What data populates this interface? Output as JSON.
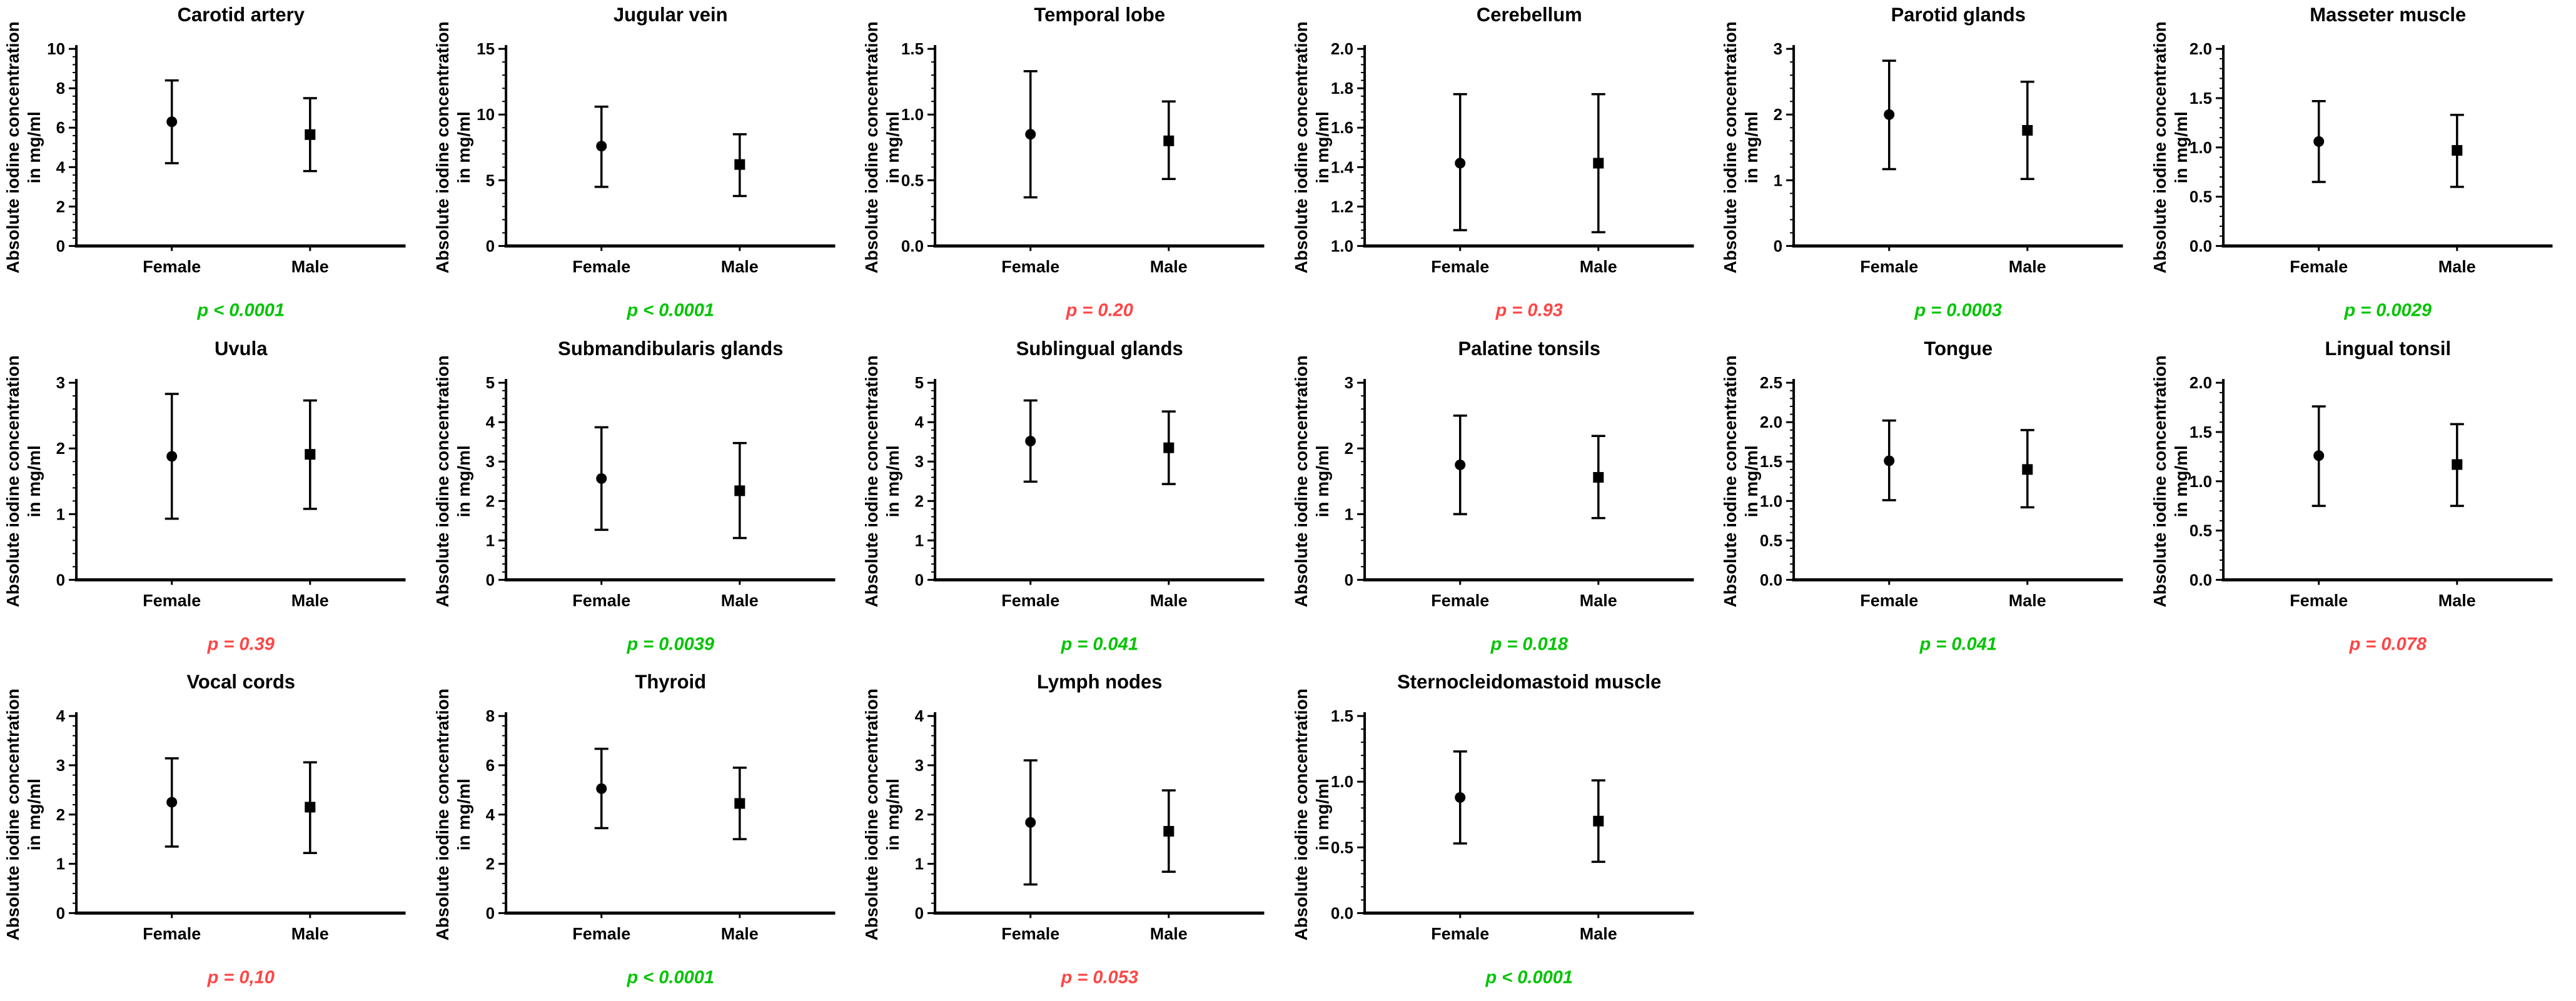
{
  "figure_title": "",
  "shared": {
    "type": "scatter-errorbar",
    "ylabel_line1": "Absolute iodine concentration",
    "ylabel_line2": "in mg/ml",
    "categories": [
      "Female",
      "Male"
    ],
    "female_marker": "circle",
    "male_marker": "square",
    "grid": "off",
    "legend": "none"
  },
  "colors": {
    "axis": "#000000",
    "marker": "#000000",
    "text": "#000000",
    "p_significant_green": "#00c400",
    "p_nonsignificant_red": "#ff4545"
  },
  "chart_data": [
    {
      "type": "scatter-errorbar",
      "title": "Carotid artery",
      "ylim": [
        0,
        10
      ],
      "ytick_values": [
        0,
        2,
        4,
        6,
        8,
        10
      ],
      "ytick_labels": [
        "0",
        "2",
        "4",
        "6",
        "8",
        "10"
      ],
      "series": [
        {
          "name": "Female",
          "marker": "circle",
          "mean": 6.3,
          "lo": 4.2,
          "hi": 8.4
        },
        {
          "name": "Male",
          "marker": "square",
          "mean": 5.65,
          "lo": 3.8,
          "hi": 7.5
        }
      ],
      "p_label": "p < 0.0001",
      "p_significant": true
    },
    {
      "type": "scatter-errorbar",
      "title": "Jugular vein",
      "ylim": [
        0,
        15
      ],
      "ytick_values": [
        0,
        5,
        10,
        15
      ],
      "ytick_labels": [
        "0",
        "5",
        "10",
        "15"
      ],
      "series": [
        {
          "name": "Female",
          "marker": "circle",
          "mean": 7.6,
          "lo": 4.5,
          "hi": 10.6
        },
        {
          "name": "Male",
          "marker": "square",
          "mean": 6.2,
          "lo": 3.8,
          "hi": 8.5
        }
      ],
      "p_label": "p < 0.0001",
      "p_significant": true
    },
    {
      "type": "scatter-errorbar",
      "title": "Temporal lobe",
      "ylim": [
        0,
        1.5
      ],
      "ytick_values": [
        0,
        0.5,
        1.0,
        1.5
      ],
      "ytick_labels": [
        "0.0",
        "0.5",
        "1.0",
        "1.5"
      ],
      "series": [
        {
          "name": "Female",
          "marker": "circle",
          "mean": 0.85,
          "lo": 0.37,
          "hi": 1.33
        },
        {
          "name": "Male",
          "marker": "square",
          "mean": 0.8,
          "lo": 0.51,
          "hi": 1.1
        }
      ],
      "p_label": "p = 0.20",
      "p_significant": false
    },
    {
      "type": "scatter-errorbar",
      "title": "Cerebellum",
      "ylim": [
        1.0,
        2.0
      ],
      "ytick_values": [
        1.0,
        1.2,
        1.4,
        1.6,
        1.8,
        2.0
      ],
      "ytick_labels": [
        "1.0",
        "1.2",
        "1.4",
        "1.6",
        "1.8",
        "2.0"
      ],
      "series": [
        {
          "name": "Female",
          "marker": "circle",
          "mean": 1.42,
          "lo": 1.08,
          "hi": 1.77
        },
        {
          "name": "Male",
          "marker": "square",
          "mean": 1.42,
          "lo": 1.07,
          "hi": 1.77
        }
      ],
      "p_label": "p = 0.93",
      "p_significant": false
    },
    {
      "type": "scatter-errorbar",
      "title": "Parotid glands",
      "ylim": [
        0,
        3
      ],
      "ytick_values": [
        0,
        1,
        2,
        3
      ],
      "ytick_labels": [
        "0",
        "1",
        "2",
        "3"
      ],
      "series": [
        {
          "name": "Female",
          "marker": "circle",
          "mean": 2.0,
          "lo": 1.17,
          "hi": 2.82
        },
        {
          "name": "Male",
          "marker": "square",
          "mean": 1.76,
          "lo": 1.02,
          "hi": 2.5
        }
      ],
      "p_label": "p = 0.0003",
      "p_significant": true
    },
    {
      "type": "scatter-errorbar",
      "title": "Masseter muscle",
      "ylim": [
        0,
        2.0
      ],
      "ytick_values": [
        0,
        0.5,
        1.0,
        1.5,
        2.0
      ],
      "ytick_labels": [
        "0.0",
        "0.5",
        "1.0",
        "1.5",
        "2.0"
      ],
      "series": [
        {
          "name": "Female",
          "marker": "circle",
          "mean": 1.06,
          "lo": 0.65,
          "hi": 1.47
        },
        {
          "name": "Male",
          "marker": "square",
          "mean": 0.97,
          "lo": 0.6,
          "hi": 1.33
        }
      ],
      "p_label": "p = 0.0029",
      "p_significant": true
    },
    {
      "type": "scatter-errorbar",
      "title": "Uvula",
      "ylim": [
        0,
        3
      ],
      "ytick_values": [
        0,
        1,
        2,
        3
      ],
      "ytick_labels": [
        "0",
        "1",
        "2",
        "3"
      ],
      "series": [
        {
          "name": "Female",
          "marker": "circle",
          "mean": 1.88,
          "lo": 0.93,
          "hi": 2.83
        },
        {
          "name": "Male",
          "marker": "square",
          "mean": 1.91,
          "lo": 1.08,
          "hi": 2.73
        }
      ],
      "p_label": "p = 0.39",
      "p_significant": false
    },
    {
      "type": "scatter-errorbar",
      "title": "Submandibularis glands",
      "ylim": [
        0,
        5
      ],
      "ytick_values": [
        0,
        1,
        2,
        3,
        4,
        5
      ],
      "ytick_labels": [
        "0",
        "1",
        "2",
        "3",
        "4",
        "5"
      ],
      "series": [
        {
          "name": "Female",
          "marker": "circle",
          "mean": 2.57,
          "lo": 1.27,
          "hi": 3.87
        },
        {
          "name": "Male",
          "marker": "square",
          "mean": 2.26,
          "lo": 1.06,
          "hi": 3.47
        }
      ],
      "p_label": "p = 0.0039",
      "p_significant": true
    },
    {
      "type": "scatter-errorbar",
      "title": "Sublingual glands",
      "ylim": [
        0,
        5
      ],
      "ytick_values": [
        0,
        1,
        2,
        3,
        4,
        5
      ],
      "ytick_labels": [
        "0",
        "1",
        "2",
        "3",
        "4",
        "5"
      ],
      "series": [
        {
          "name": "Female",
          "marker": "circle",
          "mean": 3.52,
          "lo": 2.49,
          "hi": 4.55
        },
        {
          "name": "Male",
          "marker": "square",
          "mean": 3.35,
          "lo": 2.43,
          "hi": 4.27
        }
      ],
      "p_label": "p = 0.041",
      "p_significant": true
    },
    {
      "type": "scatter-errorbar",
      "title": "Palatine tonsils",
      "ylim": [
        0,
        3
      ],
      "ytick_values": [
        0,
        1,
        2,
        3
      ],
      "ytick_labels": [
        "0",
        "1",
        "2",
        "3"
      ],
      "series": [
        {
          "name": "Female",
          "marker": "circle",
          "mean": 1.75,
          "lo": 1.0,
          "hi": 2.5
        },
        {
          "name": "Male",
          "marker": "square",
          "mean": 1.56,
          "lo": 0.94,
          "hi": 2.19
        }
      ],
      "p_label": "p = 0.018",
      "p_significant": true
    },
    {
      "type": "scatter-errorbar",
      "title": "Tongue",
      "ylim": [
        0,
        2.5
      ],
      "ytick_values": [
        0,
        0.5,
        1.0,
        1.5,
        2.0,
        2.5
      ],
      "ytick_labels": [
        "0.0",
        "0.5",
        "1.0",
        "1.5",
        "2.0",
        "2.5"
      ],
      "series": [
        {
          "name": "Female",
          "marker": "circle",
          "mean": 1.51,
          "lo": 1.01,
          "hi": 2.02
        },
        {
          "name": "Male",
          "marker": "square",
          "mean": 1.4,
          "lo": 0.92,
          "hi": 1.9
        }
      ],
      "p_label": "p = 0.041",
      "p_significant": true
    },
    {
      "type": "scatter-errorbar",
      "title": "Lingual tonsil",
      "ylim": [
        0,
        2.0
      ],
      "ytick_values": [
        0,
        0.5,
        1.0,
        1.5,
        2.0
      ],
      "ytick_labels": [
        "0.0",
        "0.5",
        "1.0",
        "1.5",
        "2.0"
      ],
      "series": [
        {
          "name": "Female",
          "marker": "circle",
          "mean": 1.26,
          "lo": 0.75,
          "hi": 1.76
        },
        {
          "name": "Male",
          "marker": "square",
          "mean": 1.17,
          "lo": 0.75,
          "hi": 1.58
        }
      ],
      "p_label": "p = 0.078",
      "p_significant": false
    },
    {
      "type": "scatter-errorbar",
      "title": "Vocal cords",
      "ylim": [
        0,
        4
      ],
      "ytick_values": [
        0,
        1,
        2,
        3,
        4
      ],
      "ytick_labels": [
        "0",
        "1",
        "2",
        "3",
        "4"
      ],
      "series": [
        {
          "name": "Female",
          "marker": "circle",
          "mean": 2.25,
          "lo": 1.35,
          "hi": 3.14
        },
        {
          "name": "Male",
          "marker": "square",
          "mean": 2.15,
          "lo": 1.22,
          "hi": 3.06
        }
      ],
      "p_label": "p = 0,10",
      "p_significant": false
    },
    {
      "type": "scatter-errorbar",
      "title": "Thyroid",
      "ylim": [
        0,
        8
      ],
      "ytick_values": [
        0,
        2,
        4,
        6,
        8
      ],
      "ytick_labels": [
        "0",
        "2",
        "4",
        "6",
        "8"
      ],
      "series": [
        {
          "name": "Female",
          "marker": "circle",
          "mean": 5.05,
          "lo": 3.45,
          "hi": 6.67
        },
        {
          "name": "Male",
          "marker": "square",
          "mean": 4.45,
          "lo": 3.0,
          "hi": 5.9
        }
      ],
      "p_label": "p < 0.0001",
      "p_significant": true
    },
    {
      "type": "scatter-errorbar",
      "title": "Lymph nodes",
      "ylim": [
        0,
        4
      ],
      "ytick_values": [
        0,
        1,
        2,
        3,
        4
      ],
      "ytick_labels": [
        "0",
        "1",
        "2",
        "3",
        "4"
      ],
      "series": [
        {
          "name": "Female",
          "marker": "circle",
          "mean": 1.84,
          "lo": 0.58,
          "hi": 3.1
        },
        {
          "name": "Male",
          "marker": "square",
          "mean": 1.66,
          "lo": 0.84,
          "hi": 2.49
        }
      ],
      "p_label": "p = 0.053",
      "p_significant": false
    },
    {
      "type": "scatter-errorbar",
      "title": "Sternocleidomastoid muscle",
      "ylim": [
        0,
        1.5
      ],
      "ytick_values": [
        0,
        0.5,
        1.0,
        1.5
      ],
      "ytick_labels": [
        "0.0",
        "0.5",
        "1.0",
        "1.5"
      ],
      "series": [
        {
          "name": "Female",
          "marker": "circle",
          "mean": 0.88,
          "lo": 0.53,
          "hi": 1.23
        },
        {
          "name": "Male",
          "marker": "square",
          "mean": 0.7,
          "lo": 0.39,
          "hi": 1.01
        }
      ],
      "p_label": "p < 0.0001",
      "p_significant": true
    }
  ]
}
